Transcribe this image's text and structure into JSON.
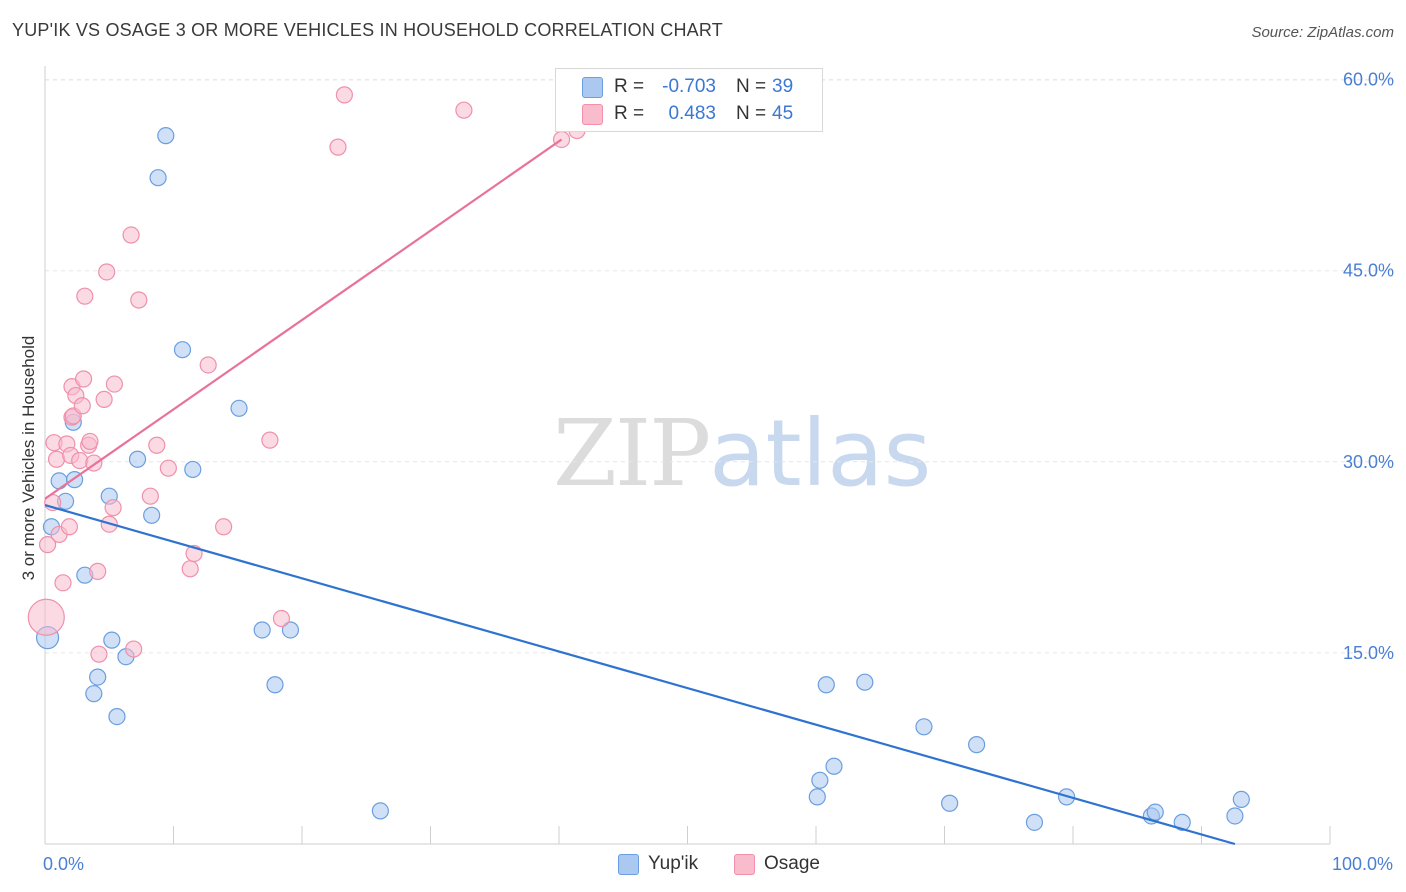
{
  "header": {
    "title": "YUP'IK VS OSAGE 3 OR MORE VEHICLES IN HOUSEHOLD CORRELATION CHART",
    "source": "Source: ZipAtlas.com"
  },
  "watermark": {
    "zip": "ZIP",
    "atlas": "atlas"
  },
  "legend_box": {
    "rows": [
      {
        "label": "R =",
        "r_value": "-0.703",
        "n_label": "N =",
        "n_value": "39",
        "color": "#aac8f0"
      },
      {
        "label": "R =",
        "r_value": " 0.483",
        "n_label": "N =",
        "n_value": "45",
        "color": "#f8bccd"
      }
    ]
  },
  "bottom_legend": [
    {
      "label": "Yup'ik",
      "color": "#aac8f0"
    },
    {
      "label": "Osage",
      "color": "#f8bccd"
    }
  ],
  "chart_data": {
    "type": "scatter",
    "title": "YUP'IK VS OSAGE 3 OR MORE VEHICLES IN HOUSEHOLD CORRELATION CHART",
    "xlabel": "",
    "ylabel": "3 or more Vehicles in Household",
    "xlim": [
      0,
      100
    ],
    "ylim": [
      0,
      61.5
    ],
    "x_tick_labels": [
      {
        "value": 0,
        "label": "0.0%"
      },
      {
        "value": 100,
        "label": "100.0%"
      }
    ],
    "y_tick_labels": [
      {
        "value": 15,
        "label": "15.0%"
      },
      {
        "value": 30,
        "label": "30.0%"
      },
      {
        "value": 45,
        "label": "45.0%"
      },
      {
        "value": 60,
        "label": "60.0%"
      }
    ],
    "grid": true,
    "series": [
      {
        "name": "Yup'ik",
        "color": "#6a9ee0",
        "fill": "#aac8f0",
        "trend_color": "#2f73d0",
        "trend": {
          "x": [
            0,
            92.6
          ],
          "y": [
            26.6,
            0
          ]
        },
        "points": [
          [
            0.2,
            16.2
          ],
          [
            0.5,
            24.9
          ],
          [
            1.1,
            28.5
          ],
          [
            1.6,
            26.9
          ],
          [
            2.3,
            28.6
          ],
          [
            2.2,
            33.1
          ],
          [
            3.1,
            21.1
          ],
          [
            3.8,
            11.8
          ],
          [
            4.1,
            13.1
          ],
          [
            5.0,
            27.3
          ],
          [
            5.2,
            16.0
          ],
          [
            5.6,
            10.0
          ],
          [
            6.3,
            14.7
          ],
          [
            7.2,
            30.2
          ],
          [
            8.3,
            25.8
          ],
          [
            8.8,
            52.3
          ],
          [
            9.4,
            55.6
          ],
          [
            10.7,
            38.8
          ],
          [
            11.5,
            29.4
          ],
          [
            15.1,
            34.2
          ],
          [
            16.9,
            16.8
          ],
          [
            17.9,
            12.5
          ],
          [
            19.1,
            16.8
          ],
          [
            26.1,
            2.6
          ],
          [
            60.1,
            3.7
          ],
          [
            60.3,
            5.0
          ],
          [
            60.8,
            12.5
          ],
          [
            61.4,
            6.1
          ],
          [
            63.8,
            12.7
          ],
          [
            68.4,
            9.2
          ],
          [
            70.4,
            3.2
          ],
          [
            72.5,
            7.8
          ],
          [
            77.0,
            1.7
          ],
          [
            79.5,
            3.7
          ],
          [
            86.1,
            2.2
          ],
          [
            86.4,
            2.5
          ],
          [
            88.5,
            1.7
          ],
          [
            92.6,
            2.2
          ],
          [
            93.1,
            3.5
          ]
        ]
      },
      {
        "name": "Osage",
        "color": "#f090aa",
        "fill": "#f8bccd",
        "trend_color": "#e8729a",
        "trend": {
          "x": [
            0,
            40.2
          ],
          "y": [
            27.1,
            55.3
          ]
        },
        "points": [
          [
            0.1,
            17.8
          ],
          [
            0.2,
            23.5
          ],
          [
            0.6,
            26.8
          ],
          [
            0.7,
            31.5
          ],
          [
            0.9,
            30.2
          ],
          [
            1.1,
            24.3
          ],
          [
            1.4,
            20.5
          ],
          [
            1.7,
            31.4
          ],
          [
            1.9,
            24.9
          ],
          [
            2.0,
            30.5
          ],
          [
            2.1,
            35.9
          ],
          [
            2.1,
            33.5
          ],
          [
            2.2,
            33.6
          ],
          [
            2.4,
            35.2
          ],
          [
            2.7,
            30.1
          ],
          [
            2.9,
            34.4
          ],
          [
            3.0,
            36.5
          ],
          [
            3.1,
            43.0
          ],
          [
            3.4,
            31.3
          ],
          [
            3.5,
            31.6
          ],
          [
            3.8,
            29.9
          ],
          [
            4.1,
            21.4
          ],
          [
            4.2,
            14.9
          ],
          [
            4.6,
            34.9
          ],
          [
            4.8,
            44.9
          ],
          [
            5.0,
            25.1
          ],
          [
            5.3,
            26.4
          ],
          [
            5.4,
            36.1
          ],
          [
            6.7,
            47.8
          ],
          [
            6.9,
            15.3
          ],
          [
            7.3,
            42.7
          ],
          [
            8.2,
            27.3
          ],
          [
            8.7,
            31.3
          ],
          [
            9.6,
            29.5
          ],
          [
            11.3,
            21.6
          ],
          [
            11.6,
            22.8
          ],
          [
            12.7,
            37.6
          ],
          [
            13.9,
            24.9
          ],
          [
            17.5,
            31.7
          ],
          [
            18.4,
            17.7
          ],
          [
            22.8,
            54.7
          ],
          [
            23.3,
            58.8
          ],
          [
            32.6,
            57.6
          ],
          [
            40.2,
            55.3
          ],
          [
            41.4,
            56.0
          ]
        ]
      }
    ]
  }
}
